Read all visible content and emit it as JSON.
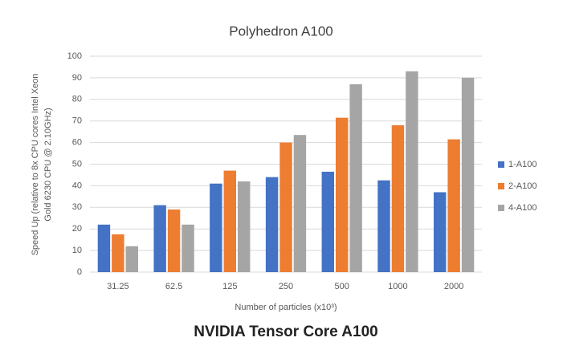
{
  "chart_data": {
    "type": "bar",
    "title": "Polyhedron A100",
    "ylabel": [
      "Speed Up (relative to 8x CPU cores Intel Xeon",
      "Gold 6230 CPU @ 2.10GHz)"
    ],
    "xlabel": "Number of particles (x10³)",
    "caption": "NVIDIA Tensor Core A100",
    "categories": [
      "31.25",
      "62.5",
      "125",
      "250",
      "500",
      "1000",
      "2000"
    ],
    "series": [
      {
        "name": "1-A100",
        "color": "#4472c4",
        "values": [
          22,
          31,
          41,
          44,
          46.5,
          42.5,
          37
        ]
      },
      {
        "name": "2-A100",
        "color": "#ed7d31",
        "values": [
          17.5,
          29,
          47,
          60,
          71.5,
          68,
          61.5
        ]
      },
      {
        "name": "4-A100",
        "color": "#a5a5a5",
        "values": [
          12,
          22,
          42,
          63.5,
          87,
          93,
          90
        ]
      }
    ],
    "ylim": [
      0,
      100
    ],
    "yticks": [
      0,
      10,
      20,
      30,
      40,
      50,
      60,
      70,
      80,
      90,
      100
    ],
    "grid": true,
    "legend": "right"
  }
}
